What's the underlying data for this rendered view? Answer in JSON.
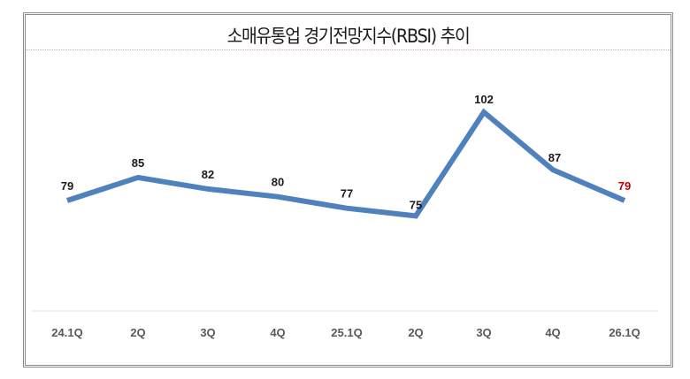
{
  "chart_data": {
    "type": "line",
    "title": "소매유통업 경기전망지수(RBSI) 추이",
    "xlabel": "",
    "ylabel": "",
    "categories": [
      "24.1Q",
      "2Q",
      "3Q",
      "4Q",
      "25.1Q",
      "2Q",
      "3Q",
      "4Q",
      "26.1Q"
    ],
    "series": [
      {
        "name": "RBSI",
        "values": [
          79,
          85,
          82,
          80,
          77,
          75,
          102,
          87,
          79
        ],
        "color": "#4f81bd"
      }
    ],
    "highlight": {
      "index": 8,
      "label_color": "#c00000"
    },
    "grid": false,
    "legend": "none"
  },
  "colors": {
    "line": "#4f81bd",
    "label": "#1a1a1a",
    "highlight_label": "#c00000",
    "axis_label": "#595959"
  }
}
